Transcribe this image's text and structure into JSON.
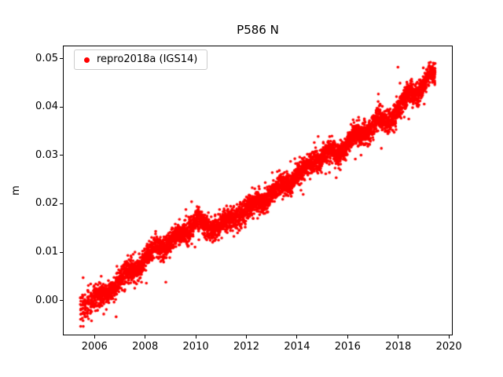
{
  "chart": {
    "title": "P586 N",
    "ylabel": "m",
    "legend": {
      "label": "repro2018a (IGS14)",
      "marker_color": "#ff0000"
    }
  },
  "chart_data": {
    "type": "scatter",
    "title": "P586 N",
    "xlabel": "",
    "ylabel": "m",
    "xlim": [
      2004.75,
      2020.15
    ],
    "ylim": [
      -0.0072,
      0.0527
    ],
    "grid": false,
    "legend_position": "upper left",
    "x_ticks": [
      {
        "value": 2006,
        "label": "2006"
      },
      {
        "value": 2008,
        "label": "2008"
      },
      {
        "value": 2010,
        "label": "2010"
      },
      {
        "value": 2012,
        "label": "2012"
      },
      {
        "value": 2014,
        "label": "2014"
      },
      {
        "value": 2016,
        "label": "2016"
      },
      {
        "value": 2018,
        "label": "2018"
      },
      {
        "value": 2020,
        "label": "2020"
      }
    ],
    "y_ticks": [
      {
        "value": 0.0,
        "label": "0.00"
      },
      {
        "value": 0.01,
        "label": "0.01"
      },
      {
        "value": 0.02,
        "label": "0.02"
      },
      {
        "value": 0.03,
        "label": "0.03"
      },
      {
        "value": 0.04,
        "label": "0.04"
      },
      {
        "value": 0.05,
        "label": "0.05"
      }
    ],
    "series": [
      {
        "name": "repro2018a (IGS14)",
        "color": "#ff0000",
        "marker": "dot",
        "description": "Daily GPS north-component position time series; dense red scatter band rising roughly linearly from about -0.002 m in mid-2005 to about 0.047 m in mid-2019 (~0.0035 m/yr) with small multi-month wiggles and ~0.002 m daily scatter.",
        "start": 2005.95,
        "end": 2019.46,
        "step": 0.00274,
        "noise_sigma": 0.0011,
        "outlier_fraction": 0.06,
        "outlier_sigma": 0.002,
        "seasonal_amplitude": 0.0006,
        "trend_points": [
          [
            2005.44,
            -0.0015
          ],
          [
            2005.95,
            0.0008
          ],
          [
            2006.25,
            0.0005
          ],
          [
            2006.55,
            0.0018
          ],
          [
            2006.85,
            0.0035
          ],
          [
            2007.15,
            0.005
          ],
          [
            2007.5,
            0.006
          ],
          [
            2007.85,
            0.0075
          ],
          [
            2008.15,
            0.0095
          ],
          [
            2008.45,
            0.011
          ],
          [
            2008.8,
            0.0115
          ],
          [
            2009.1,
            0.0125
          ],
          [
            2009.4,
            0.0135
          ],
          [
            2009.7,
            0.0145
          ],
          [
            2009.95,
            0.0165
          ],
          [
            2010.1,
            0.017
          ],
          [
            2010.3,
            0.015
          ],
          [
            2010.6,
            0.015
          ],
          [
            2010.9,
            0.0155
          ],
          [
            2011.2,
            0.016
          ],
          [
            2011.5,
            0.017
          ],
          [
            2011.8,
            0.0185
          ],
          [
            2012.1,
            0.019
          ],
          [
            2012.4,
            0.02
          ],
          [
            2012.7,
            0.021
          ],
          [
            2013.0,
            0.022
          ],
          [
            2013.35,
            0.0235
          ],
          [
            2013.7,
            0.0245
          ],
          [
            2014.0,
            0.026
          ],
          [
            2014.35,
            0.027
          ],
          [
            2014.7,
            0.029
          ],
          [
            2015.0,
            0.0295
          ],
          [
            2015.3,
            0.031
          ],
          [
            2015.6,
            0.0305
          ],
          [
            2015.95,
            0.032
          ],
          [
            2016.25,
            0.034
          ],
          [
            2016.55,
            0.0345
          ],
          [
            2016.9,
            0.0355
          ],
          [
            2017.2,
            0.0375
          ],
          [
            2017.55,
            0.037
          ],
          [
            2017.9,
            0.039
          ],
          [
            2018.2,
            0.041
          ],
          [
            2018.5,
            0.043
          ],
          [
            2018.8,
            0.0435
          ],
          [
            2019.05,
            0.045
          ],
          [
            2019.25,
            0.0462
          ],
          [
            2019.46,
            0.047
          ]
        ],
        "early_sparse_clusters": [
          {
            "start": 2005.44,
            "end": 2005.47,
            "sigma": 0.002
          },
          {
            "start": 2005.52,
            "end": 2005.56,
            "sigma": 0.0022
          },
          {
            "start": 2005.61,
            "end": 2005.65,
            "sigma": 0.0018
          },
          {
            "start": 2005.71,
            "end": 2005.77,
            "sigma": 0.0016
          },
          {
            "start": 2005.83,
            "end": 2005.91,
            "sigma": 0.0014
          }
        ]
      }
    ]
  }
}
